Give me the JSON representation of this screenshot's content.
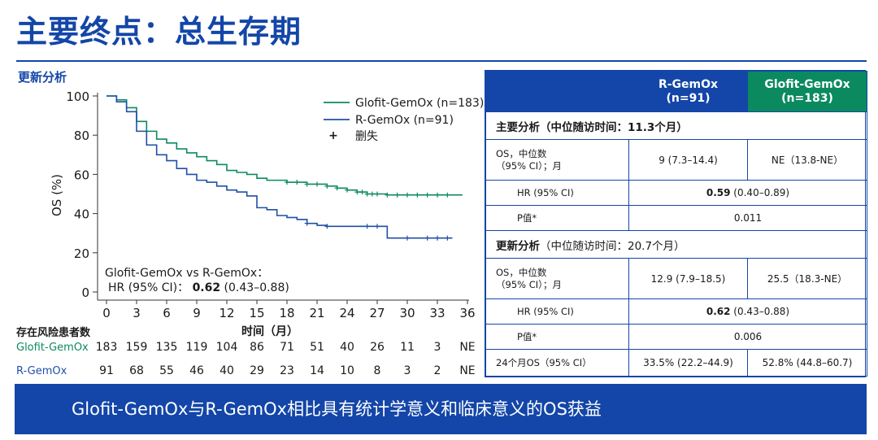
{
  "title": "主要终点：总生存期",
  "subtitle": "更新分析",
  "colors": {
    "brand_blue": "#1346a8",
    "glofit_green": "#0b8a5f",
    "rgemox_blue": "#1f4fa8"
  },
  "chart_data": {
    "type": "line",
    "ylabel": "OS (%)",
    "xlabel": "时间（月）",
    "xlim": [
      0,
      36
    ],
    "ylim": [
      0,
      100
    ],
    "xticks": [
      0,
      3,
      6,
      9,
      12,
      15,
      18,
      21,
      24,
      27,
      30,
      33,
      36
    ],
    "yticks": [
      0,
      20,
      40,
      60,
      80,
      100
    ],
    "legend": {
      "position": "top-right",
      "glofit": "Glofit-GemOx (n=183)",
      "rgemox": "R-GemOx (n=91)",
      "censor_mark": "+",
      "censor": "删失"
    },
    "annotation": {
      "line1": "Glofit-GemOx vs R-GemOx：",
      "hr_label": "HR (95% CI)：",
      "hr_value": "0.62",
      "hr_ci": "(0.43–0.88)"
    },
    "series": [
      {
        "name": "Glofit-GemOx (n=183)",
        "color": "#0b8a5f",
        "x": [
          0,
          1,
          2,
          3,
          4,
          5,
          6,
          7,
          8,
          9,
          10,
          11,
          12,
          13,
          14,
          15,
          16,
          17,
          18,
          19,
          20,
          21,
          22,
          23,
          24,
          25,
          26,
          27,
          28,
          30,
          32,
          33,
          35.5
        ],
        "y": [
          100,
          98,
          94,
          87,
          82,
          78,
          76,
          73,
          71,
          69,
          67,
          65,
          62,
          61,
          60,
          58,
          57,
          57,
          56,
          56,
          55,
          55,
          54,
          53,
          52,
          51,
          50,
          50,
          49.5,
          49.5,
          49.5,
          49.5,
          49.5
        ],
        "censored_x": [
          18,
          19,
          20,
          21,
          22,
          23,
          24,
          25,
          25.5,
          26,
          26.5,
          27,
          28,
          29,
          30,
          31,
          32,
          33,
          34
        ]
      },
      {
        "name": "R-GemOx (n=91)",
        "color": "#1f4fa8",
        "x": [
          0,
          1,
          2,
          3,
          4,
          5,
          6,
          7,
          8,
          9,
          10,
          11,
          12,
          13,
          14,
          15,
          16,
          17,
          18,
          19,
          20,
          21,
          22,
          23,
          24,
          25,
          26,
          27,
          27.9,
          28,
          30,
          32,
          34.5
        ],
        "y": [
          100,
          97,
          92,
          82,
          75,
          70,
          67,
          63,
          60,
          57,
          56,
          54,
          52,
          51,
          49,
          43,
          42,
          39,
          38,
          37,
          35,
          34,
          33.5,
          33.5,
          33.5,
          33.5,
          33.5,
          33.5,
          33.5,
          27.5,
          27.5,
          27.5,
          27.5
        ],
        "censored_x": [
          20,
          22,
          26,
          27,
          30,
          32,
          33,
          34
        ]
      }
    ],
    "risk_table": {
      "label": "存在风险患者数",
      "rows": [
        {
          "name": "Glofit-GemOx",
          "color": "#0b8a5f",
          "values": [
            "183",
            "159",
            "135",
            "119",
            "104",
            "86",
            "71",
            "51",
            "40",
            "26",
            "11",
            "3",
            "NE"
          ]
        },
        {
          "name": "R-GemOx",
          "color": "#1f4fa8",
          "values": [
            "91",
            "68",
            "55",
            "46",
            "40",
            "29",
            "23",
            "14",
            "10",
            "8",
            "3",
            "2",
            "NE"
          ]
        }
      ]
    }
  },
  "table": {
    "col_rgemox": "R-GemOx",
    "col_rgemox_n": "(n=91)",
    "col_glofit": "Glofit-GemOx",
    "col_glofit_n": "(n=183)",
    "primary_title": "主要分析",
    "primary_sub": "（中位随访时间：11.3个月）",
    "os_label_1": "OS，中位数",
    "os_label_2": "（95% CI）；月",
    "primary_os_r": "9 (7.3–14.4)",
    "primary_os_g": "NE（13.8-NE）",
    "hr_label": "HR (95% CI)",
    "primary_hr_bold": "0.59",
    "primary_hr_rest": " (0.40–0.89)",
    "p_label": "P值*",
    "primary_p": "0.011",
    "updated_title": "更新分析",
    "updated_sub": "（中位随访时间：20.7个月）",
    "updated_os_r": "12.9 (7.9–18.5)",
    "updated_os_g": "25.5（18.3-NE）",
    "updated_hr_bold": "0.62",
    "updated_hr_rest": " (0.43–0.88)",
    "updated_p": "0.006",
    "os24_label": "24个月OS（95% CI）",
    "os24_r": "33.5% (22.2–44.9)",
    "os24_g": "52.8% (44.8–60.7)"
  },
  "banner": "Glofit-GemOx与R-GemOx相比具有统计学意义和临床意义的OS获益"
}
